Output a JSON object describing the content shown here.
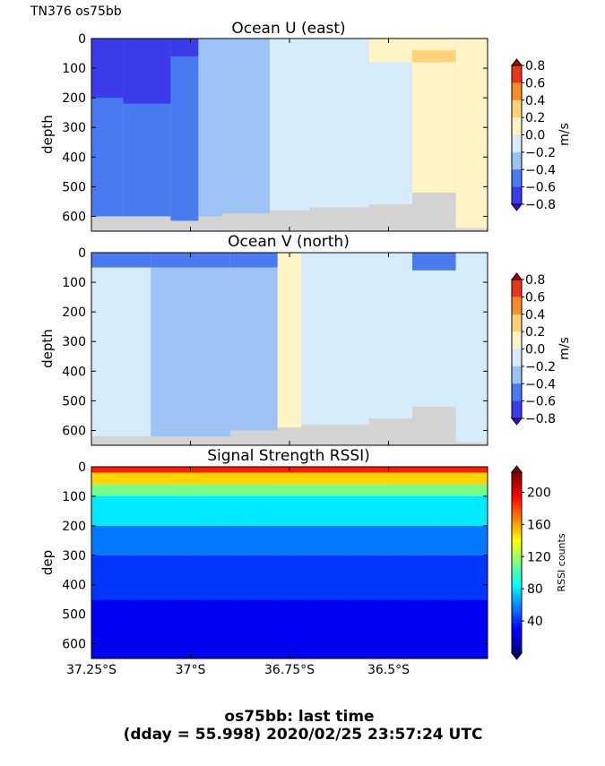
{
  "header": {
    "corner_label": "TN376 os75bb"
  },
  "footer": {
    "line1": "os75bb: last time",
    "line2": "(dday = 55.998) 2020/02/25 23:57:24 UTC"
  },
  "colors": {
    "land_gray": "#d3d3d3",
    "u_levels": [
      "#4a00d8",
      "#3b3bec",
      "#4a7af0",
      "#9dc2f5",
      "#d6ecfb",
      "#fff4c6",
      "#ffd27a",
      "#fb8c28",
      "#e8361c",
      "#a80000"
    ],
    "jet": [
      "#00008f",
      "#0000ff",
      "#007fff",
      "#00ffff",
      "#7fff7f",
      "#ffff00",
      "#ff7f00",
      "#ff0000",
      "#7f0000"
    ]
  },
  "chart_data": [
    {
      "type": "heatmap",
      "title": "Ocean U (east)",
      "ylabel": "depth",
      "xlabel": "",
      "xlim": [
        -37.25,
        -36.25
      ],
      "ylim": [
        650,
        0
      ],
      "xticks": [],
      "yticks": [
        "0",
        "100",
        "200",
        "300",
        "400",
        "500",
        "600"
      ],
      "colorbar": {
        "label": "m/s",
        "range": [
          -0.8,
          0.8
        ],
        "ticks": [
          "0.8",
          "0.6",
          "0.4",
          "0.2",
          "0.0",
          "−0.2",
          "−0.4",
          "−0.6",
          "−0.8"
        ]
      },
      "columns": [
        {
          "x0": -37.25,
          "x1": -37.17,
          "bottom": 610,
          "profile": [
            [
              0,
              600,
              -0.55
            ]
          ],
          "top": [
            [
              0,
              200,
              -0.72
            ]
          ]
        },
        {
          "x0": -37.17,
          "x1": -37.05,
          "bottom": 620,
          "profile": [
            [
              0,
              600,
              -0.55
            ]
          ],
          "top": [
            [
              0,
              220,
              -0.72
            ]
          ]
        },
        {
          "x0": -37.05,
          "x1": -36.98,
          "bottom": 615,
          "profile": [
            [
              0,
              620,
              -0.5
            ]
          ],
          "top": [
            [
              0,
              60,
              -0.72
            ]
          ]
        },
        {
          "x0": -36.98,
          "x1": -36.92,
          "bottom": 600,
          "profile": [
            [
              0,
              600,
              -0.35
            ]
          ]
        },
        {
          "x0": -36.92,
          "x1": -36.8,
          "bottom": 590,
          "profile": [
            [
              0,
              590,
              -0.3
            ]
          ]
        },
        {
          "x0": -36.8,
          "x1": -36.7,
          "bottom": 580,
          "profile": [
            [
              0,
              580,
              -0.1
            ]
          ]
        },
        {
          "x0": -36.7,
          "x1": -36.55,
          "bottom": 570,
          "profile": [
            [
              0,
              570,
              -0.1
            ]
          ]
        },
        {
          "x0": -36.55,
          "x1": -36.44,
          "bottom": 560,
          "profile": [
            [
              0,
              80,
              0.05
            ],
            [
              80,
              560,
              -0.1
            ]
          ]
        },
        {
          "x0": -36.44,
          "x1": -36.33,
          "bottom": 520,
          "profile": [
            [
              0,
              520,
              0.05
            ]
          ],
          "top": [
            [
              40,
              80,
              0.25
            ]
          ]
        },
        {
          "x0": -36.33,
          "x1": -36.25,
          "bottom": 640,
          "profile": [
            [
              0,
              640,
              0.05
            ]
          ]
        }
      ]
    },
    {
      "type": "heatmap",
      "title": "Ocean V (north)",
      "ylabel": "depth",
      "xlabel": "",
      "xlim": [
        -37.25,
        -36.25
      ],
      "ylim": [
        650,
        0
      ],
      "xticks": [],
      "yticks": [
        "0",
        "100",
        "200",
        "300",
        "400",
        "500",
        "600"
      ],
      "colorbar": {
        "label": "m/s",
        "range": [
          -0.8,
          0.8
        ],
        "ticks": [
          "0.8",
          "0.6",
          "0.4",
          "0.2",
          "0.0",
          "−0.2",
          "−0.4",
          "−0.6",
          "−0.8"
        ]
      },
      "columns": [
        {
          "x0": -37.25,
          "x1": -37.1,
          "bottom": 620,
          "profile": [
            [
              0,
              50,
              -0.5
            ],
            [
              50,
              620,
              -0.1
            ]
          ]
        },
        {
          "x0": -37.1,
          "x1": -36.9,
          "bottom": 620,
          "profile": [
            [
              0,
              50,
              -0.5
            ],
            [
              50,
              620,
              -0.3
            ]
          ]
        },
        {
          "x0": -36.9,
          "x1": -36.78,
          "bottom": 600,
          "profile": [
            [
              0,
              50,
              -0.5
            ],
            [
              50,
              600,
              -0.3
            ]
          ]
        },
        {
          "x0": -36.78,
          "x1": -36.72,
          "bottom": 590,
          "profile": [
            [
              0,
              590,
              0.05
            ]
          ]
        },
        {
          "x0": -36.72,
          "x1": -36.55,
          "bottom": 580,
          "profile": [
            [
              0,
              580,
              -0.1
            ]
          ]
        },
        {
          "x0": -36.55,
          "x1": -36.44,
          "bottom": 560,
          "profile": [
            [
              0,
              580,
              -0.1
            ]
          ]
        },
        {
          "x0": -36.44,
          "x1": -36.33,
          "bottom": 520,
          "profile": [
            [
              0,
              60,
              -0.5
            ],
            [
              60,
              520,
              -0.1
            ]
          ]
        },
        {
          "x0": -36.33,
          "x1": -36.25,
          "bottom": 640,
          "profile": [
            [
              0,
              640,
              -0.1
            ]
          ]
        }
      ]
    },
    {
      "type": "heatmap",
      "title": "Signal Strength RSSI)",
      "ylabel": "dep",
      "xlabel": "",
      "xlim": [
        -37.25,
        -36.25
      ],
      "ylim": [
        650,
        0
      ],
      "xticks": [
        "37.25°S",
        "37°S",
        "36.75°S",
        "36.5°S"
      ],
      "xtick_values": [
        -37.25,
        -37.0,
        -36.75,
        -36.5
      ],
      "yticks": [
        "0",
        "100",
        "200",
        "300",
        "400",
        "500",
        "600"
      ],
      "colorbar": {
        "label": "RSSI counts",
        "range": [
          0,
          225
        ],
        "ticks": [
          "200",
          "160",
          "120",
          "80",
          "40"
        ]
      },
      "profile": [
        [
          0,
          20,
          190
        ],
        [
          20,
          60,
          150
        ],
        [
          60,
          100,
          110
        ],
        [
          100,
          200,
          80
        ],
        [
          200,
          300,
          55
        ],
        [
          300,
          450,
          40
        ],
        [
          450,
          650,
          25
        ]
      ]
    }
  ]
}
